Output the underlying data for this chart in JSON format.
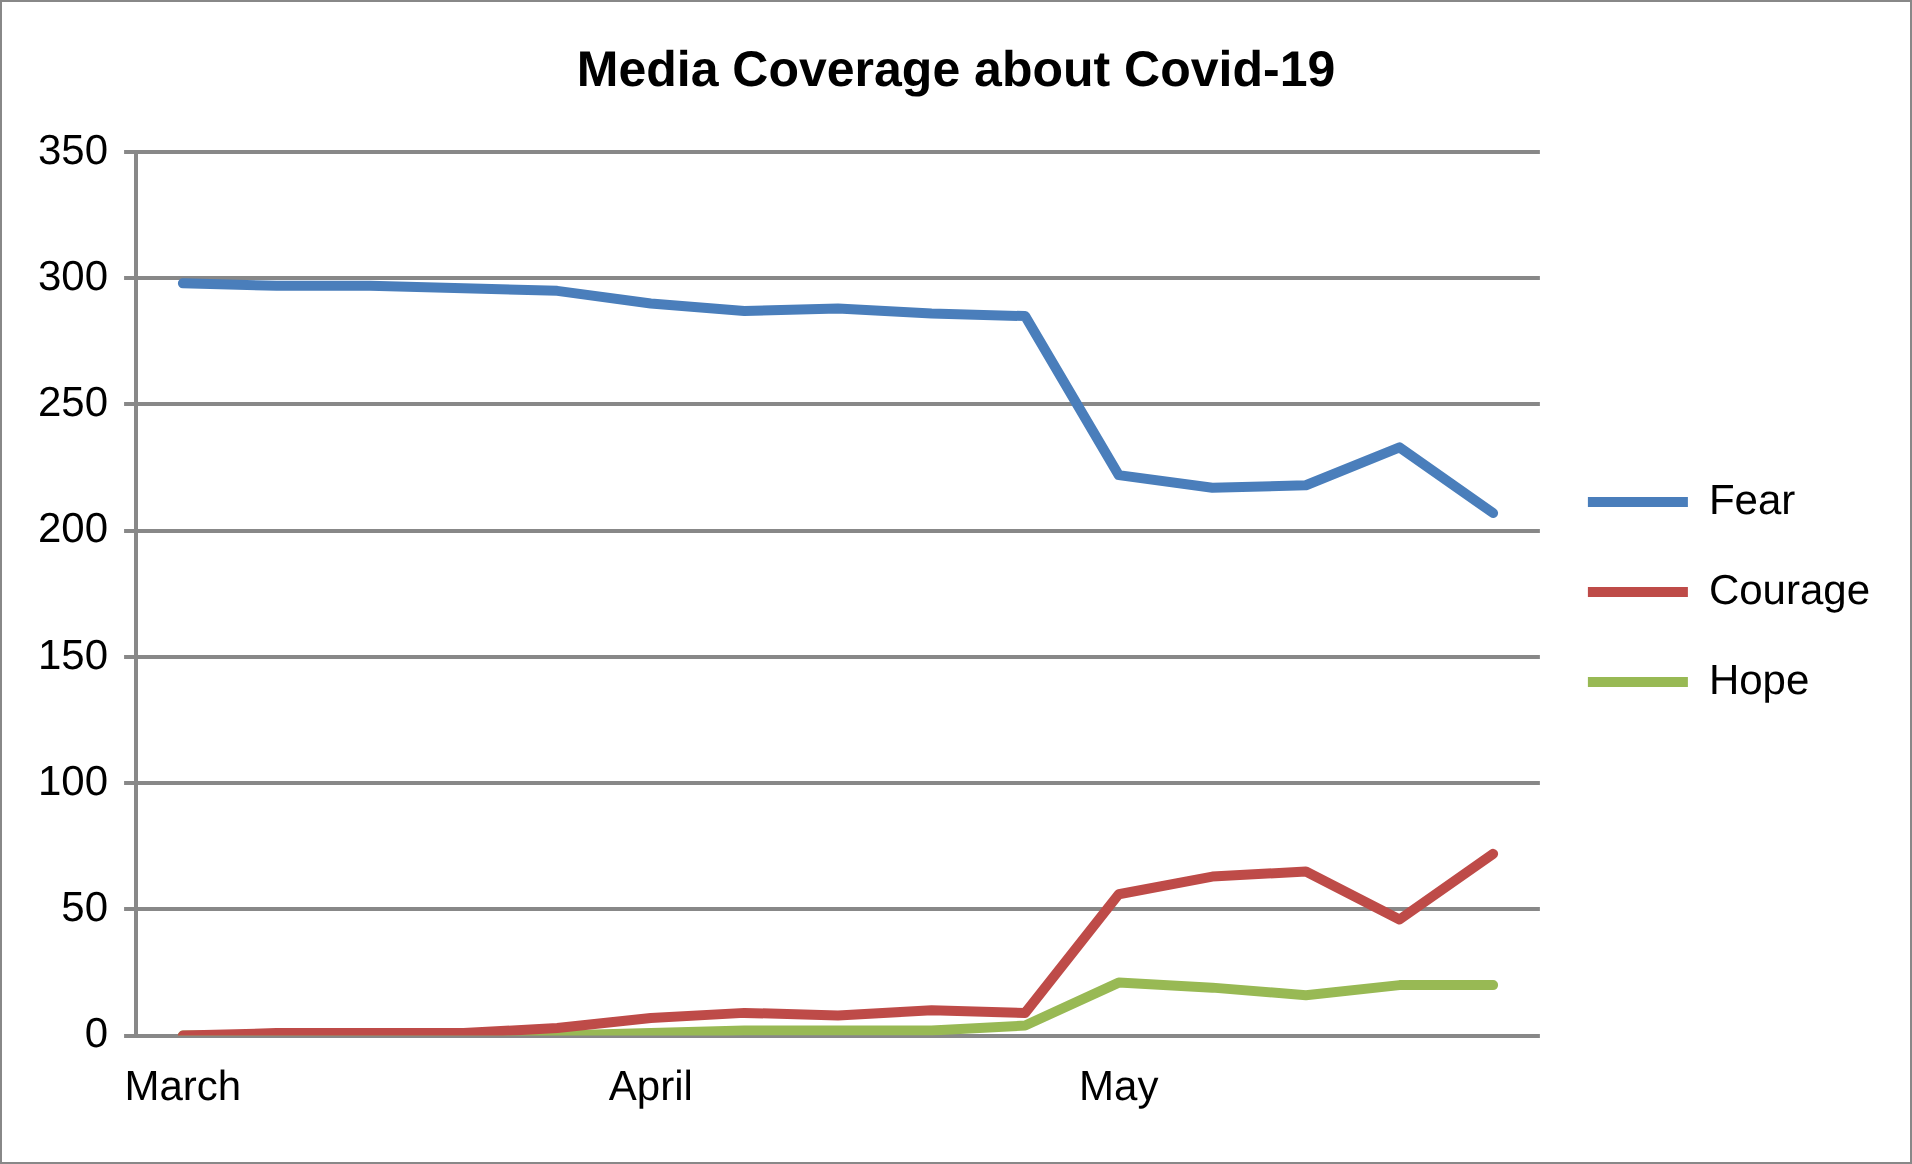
{
  "chart_data": {
    "type": "line",
    "title": "Media Coverage about Covid-19",
    "categories": [
      "March",
      null,
      null,
      null,
      null,
      "April",
      null,
      null,
      null,
      null,
      "May",
      null,
      null,
      null,
      null
    ],
    "series": [
      {
        "name": "Fear",
        "color": "#4a7ebb",
        "values": [
          298,
          297,
          297,
          296,
          295,
          290,
          287,
          288,
          286,
          285,
          222,
          217,
          218,
          233,
          207
        ]
      },
      {
        "name": "Courage",
        "color": "#be4b48",
        "values": [
          0,
          1,
          1,
          1,
          3,
          7,
          9,
          8,
          10,
          9,
          56,
          63,
          65,
          46,
          72
        ]
      },
      {
        "name": "Hope",
        "color": "#98b954",
        "values": [
          0,
          0,
          0,
          1,
          0,
          1,
          2,
          2,
          2,
          4,
          21,
          19,
          16,
          20,
          20
        ]
      }
    ],
    "ylim": [
      0,
      350
    ],
    "yticks": [
      0,
      50,
      100,
      150,
      200,
      250,
      300,
      350
    ],
    "grid": "y",
    "legend": "right",
    "marker": "none",
    "line_style": "solid"
  }
}
